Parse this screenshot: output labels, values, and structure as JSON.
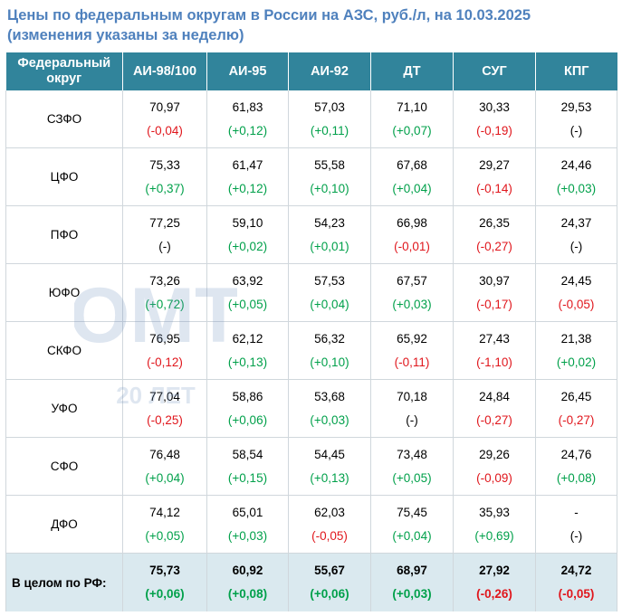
{
  "title": {
    "line1": "Цены по федеральным округам в России на АЗС, руб./л, на 10.03.2025",
    "line2": "(изменения указаны за неделю)"
  },
  "headers": [
    "Федеральный округ",
    "АИ-98/100",
    "АИ-95",
    "АИ-92",
    "ДТ",
    "СУГ",
    "КПГ"
  ],
  "rows": [
    {
      "region": "СЗФО",
      "cells": [
        {
          "value": "70,97",
          "change": "(-0,04)",
          "dir": "neg"
        },
        {
          "value": "61,83",
          "change": "(+0,12)",
          "dir": "pos"
        },
        {
          "value": "57,03",
          "change": "(+0,11)",
          "dir": "pos"
        },
        {
          "value": "71,10",
          "change": "(+0,07)",
          "dir": "pos"
        },
        {
          "value": "30,33",
          "change": "(-0,19)",
          "dir": "neg"
        },
        {
          "value": "29,53",
          "change": "(-)",
          "dir": "na"
        }
      ]
    },
    {
      "region": "ЦФО",
      "cells": [
        {
          "value": "75,33",
          "change": "(+0,37)",
          "dir": "pos"
        },
        {
          "value": "61,47",
          "change": "(+0,12)",
          "dir": "pos"
        },
        {
          "value": "55,58",
          "change": "(+0,10)",
          "dir": "pos"
        },
        {
          "value": "67,68",
          "change": "(+0,04)",
          "dir": "pos"
        },
        {
          "value": "29,27",
          "change": "(-0,14)",
          "dir": "neg"
        },
        {
          "value": "24,46",
          "change": "(+0,03)",
          "dir": "pos"
        }
      ]
    },
    {
      "region": "ПФО",
      "cells": [
        {
          "value": "77,25",
          "change": "(-)",
          "dir": "na"
        },
        {
          "value": "59,10",
          "change": "(+0,02)",
          "dir": "pos"
        },
        {
          "value": "54,23",
          "change": "(+0,01)",
          "dir": "pos"
        },
        {
          "value": "66,98",
          "change": "(-0,01)",
          "dir": "neg"
        },
        {
          "value": "26,35",
          "change": "(-0,27)",
          "dir": "neg"
        },
        {
          "value": "24,37",
          "change": "(-)",
          "dir": "na"
        }
      ]
    },
    {
      "region": "ЮФО",
      "cells": [
        {
          "value": "73,26",
          "change": "(+0,72)",
          "dir": "pos"
        },
        {
          "value": "63,92",
          "change": "(+0,05)",
          "dir": "pos"
        },
        {
          "value": "57,53",
          "change": "(+0,04)",
          "dir": "pos"
        },
        {
          "value": "67,57",
          "change": "(+0,03)",
          "dir": "pos"
        },
        {
          "value": "30,97",
          "change": "(-0,17)",
          "dir": "neg"
        },
        {
          "value": "24,45",
          "change": "(-0,05)",
          "dir": "neg"
        }
      ]
    },
    {
      "region": "СКФО",
      "cells": [
        {
          "value": "76,95",
          "change": "(-0,12)",
          "dir": "neg"
        },
        {
          "value": "62,12",
          "change": "(+0,13)",
          "dir": "pos"
        },
        {
          "value": "56,32",
          "change": "(+0,10)",
          "dir": "pos"
        },
        {
          "value": "65,92",
          "change": "(-0,11)",
          "dir": "neg"
        },
        {
          "value": "27,43",
          "change": "(-1,10)",
          "dir": "neg"
        },
        {
          "value": "21,38",
          "change": "(+0,02)",
          "dir": "pos"
        }
      ]
    },
    {
      "region": "УФО",
      "cells": [
        {
          "value": "77,04",
          "change": "(-0,25)",
          "dir": "neg"
        },
        {
          "value": "58,86",
          "change": "(+0,06)",
          "dir": "pos"
        },
        {
          "value": "53,68",
          "change": "(+0,03)",
          "dir": "pos"
        },
        {
          "value": "70,18",
          "change": "(-)",
          "dir": "na"
        },
        {
          "value": "24,84",
          "change": "(-0,27)",
          "dir": "neg"
        },
        {
          "value": "26,45",
          "change": "(-0,27)",
          "dir": "neg"
        }
      ]
    },
    {
      "region": "СФО",
      "cells": [
        {
          "value": "76,48",
          "change": "(+0,04)",
          "dir": "pos"
        },
        {
          "value": "58,54",
          "change": "(+0,15)",
          "dir": "pos"
        },
        {
          "value": "54,45",
          "change": "(+0,13)",
          "dir": "pos"
        },
        {
          "value": "73,48",
          "change": "(+0,05)",
          "dir": "pos"
        },
        {
          "value": "29,26",
          "change": "(-0,09)",
          "dir": "neg"
        },
        {
          "value": "24,76",
          "change": "(+0,08)",
          "dir": "pos"
        }
      ]
    },
    {
      "region": "ДФО",
      "cells": [
        {
          "value": "74,12",
          "change": "(+0,05)",
          "dir": "pos"
        },
        {
          "value": "65,01",
          "change": "(+0,03)",
          "dir": "pos"
        },
        {
          "value": "62,03",
          "change": "(-0,05)",
          "dir": "neg"
        },
        {
          "value": "75,45",
          "change": "(+0,04)",
          "dir": "pos"
        },
        {
          "value": "35,93",
          "change": "(+0,69)",
          "dir": "pos"
        },
        {
          "value": "-",
          "change": "(-)",
          "dir": "na"
        }
      ]
    }
  ],
  "total": {
    "region": "В целом по РФ:",
    "cells": [
      {
        "value": "75,73",
        "change": "(+0,06)",
        "dir": "pos"
      },
      {
        "value": "60,92",
        "change": "(+0,08)",
        "dir": "pos"
      },
      {
        "value": "55,67",
        "change": "(+0,06)",
        "dir": "pos"
      },
      {
        "value": "68,97",
        "change": "(+0,03)",
        "dir": "pos"
      },
      {
        "value": "27,92",
        "change": "(-0,26)",
        "dir": "neg"
      },
      {
        "value": "24,72",
        "change": "(-0,05)",
        "dir": "neg"
      }
    ]
  },
  "watermark": {
    "logo": "ОМТ",
    "tagline": "20 ЛЕТ"
  },
  "colors": {
    "title": "#4f81bd",
    "header_bg": "#31849b",
    "positive": "#00a04a",
    "negative": "#e0161c",
    "total_bg": "#dae9ef"
  }
}
